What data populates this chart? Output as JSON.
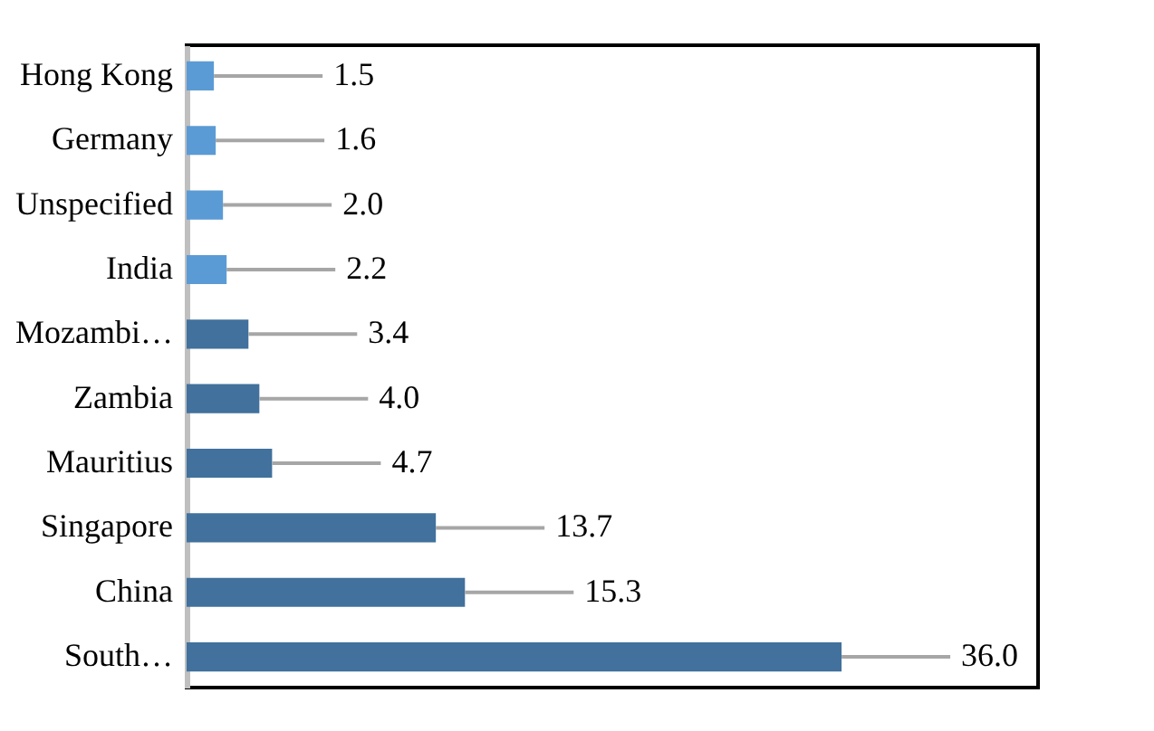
{
  "chart_data": {
    "type": "bar",
    "orientation": "horizontal",
    "categories": [
      "Hong Kong",
      "Germany",
      "Unspecified",
      "India",
      "Mozambi…",
      "Zambia",
      "Mauritius",
      "Singapore",
      "China",
      "South…"
    ],
    "values": [
      1.5,
      1.6,
      2.0,
      2.2,
      3.4,
      4.0,
      4.7,
      13.7,
      15.3,
      36.0
    ],
    "value_labels": [
      "1.5",
      "1.6",
      "2.0",
      "2.2",
      "3.4",
      "4.0",
      "4.7",
      "13.7",
      "15.3",
      "36.0"
    ],
    "colors": [
      "#5b9bd5",
      "#5b9bd5",
      "#5b9bd5",
      "#5b9bd5",
      "#41719c",
      "#41719c",
      "#41719c",
      "#41719c",
      "#41719c",
      "#41719c"
    ],
    "grid": false
  }
}
